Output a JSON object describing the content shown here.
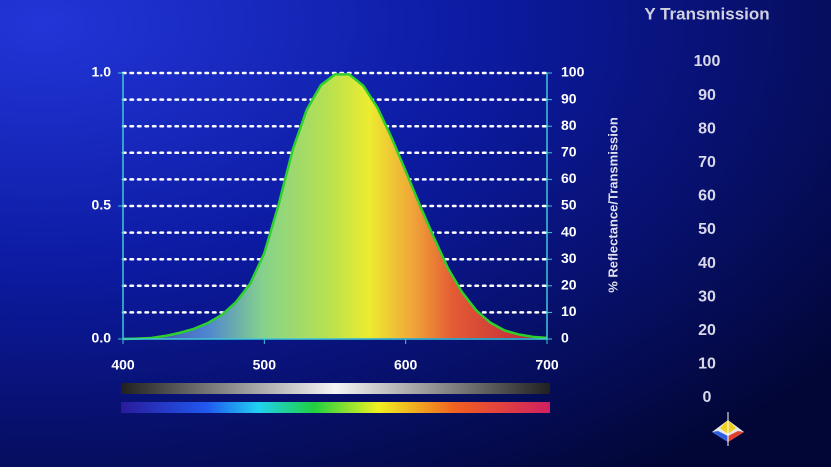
{
  "chart_data": {
    "type": "area",
    "x": [
      400,
      410,
      420,
      430,
      440,
      450,
      460,
      470,
      480,
      490,
      500,
      510,
      520,
      530,
      540,
      550,
      560,
      570,
      580,
      590,
      600,
      610,
      620,
      630,
      640,
      650,
      660,
      670,
      680,
      690,
      700
    ],
    "series": [
      {
        "color": "#2ed02e",
        "values": [
          0.0004,
          0.0012,
          0.004,
          0.0116,
          0.023,
          0.038,
          0.06,
          0.091,
          0.139,
          0.208,
          0.323,
          0.503,
          0.71,
          0.862,
          0.954,
          0.995,
          0.995,
          0.952,
          0.87,
          0.757,
          0.631,
          0.503,
          0.381,
          0.265,
          0.175,
          0.107,
          0.061,
          0.032,
          0.017,
          0.0082,
          0.0041
        ]
      }
    ],
    "xlim": [
      400,
      700
    ],
    "xticks": [
      400,
      500,
      600,
      700
    ],
    "ylim": [
      0,
      1
    ],
    "yticks": [
      {
        "value": 0,
        "label": "0.0"
      },
      {
        "value": 0.5,
        "label": "0.5"
      },
      {
        "value": 1,
        "label": "1.0"
      }
    ],
    "y2lim": [
      0,
      100
    ],
    "y2ticks": [
      0,
      10,
      20,
      30,
      40,
      50,
      60,
      70,
      80,
      90,
      100
    ],
    "y2label": "% Reflectance/Transmission",
    "grid": true,
    "y_transmission": {
      "title": "Y Transmission",
      "ticks": [
        100,
        90,
        80,
        70,
        60,
        50,
        40,
        30,
        20,
        10,
        0
      ]
    }
  }
}
